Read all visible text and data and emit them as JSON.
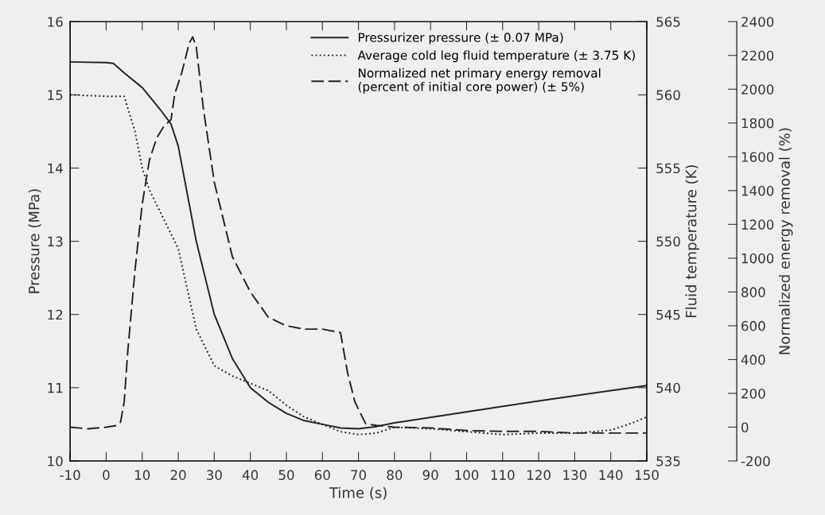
{
  "chart_data": {
    "type": "line",
    "xlabel": "Time (s)",
    "ylabel": "Pressure (MPa)",
    "y2label": "Fluid temperature (K)",
    "y3label": "Normalized energy removal (%)",
    "xlim": [
      -10,
      150
    ],
    "xticks": [
      -10,
      0,
      10,
      20,
      30,
      40,
      50,
      60,
      70,
      80,
      90,
      100,
      110,
      120,
      130,
      140,
      150
    ],
    "ylim": [
      10,
      16
    ],
    "yticks": [
      10,
      11,
      12,
      13,
      14,
      15,
      16
    ],
    "y2lim": [
      535,
      565
    ],
    "y2ticks": [
      535,
      540,
      545,
      550,
      555,
      560,
      565
    ],
    "y3lim": [
      -200,
      2400
    ],
    "y3ticks": [
      -200,
      0,
      200,
      400,
      600,
      800,
      1000,
      1200,
      1400,
      1600,
      1800,
      2000,
      2200,
      2400
    ],
    "legend": "top right",
    "grid": false,
    "series": [
      {
        "name": "Pressurizer pressure (± 0.07 MPa)",
        "color": "#222222",
        "line_style": "solid",
        "x": [
          -10,
          0,
          2,
          5,
          10,
          15,
          18,
          20,
          25,
          30,
          35,
          40,
          45,
          50,
          55,
          60,
          65,
          70,
          75,
          80,
          100,
          120,
          140,
          150
        ],
        "values": [
          15.45,
          15.44,
          15.43,
          15.3,
          15.1,
          14.8,
          14.6,
          14.3,
          13.0,
          12.0,
          11.4,
          11.0,
          10.8,
          10.65,
          10.55,
          10.5,
          10.45,
          10.44,
          10.47,
          10.52,
          10.67,
          10.82,
          10.96,
          11.03
        ]
      },
      {
        "name": "Average cold leg fluid temperature (± 3.75 K)",
        "color": "#222222",
        "line_style": "dotted",
        "axis": "y2",
        "x": [
          -10,
          0,
          5,
          8,
          10,
          12,
          15,
          20,
          25,
          30,
          35,
          40,
          45,
          50,
          55,
          60,
          65,
          70,
          75,
          80,
          90,
          100,
          110,
          120,
          130,
          140,
          145,
          150
        ],
        "values": [
          560,
          559.9,
          559.9,
          557.5,
          555,
          553.5,
          552,
          549.5,
          544,
          541.5,
          540.8,
          540.3,
          539.8,
          538.8,
          538,
          537.5,
          537,
          536.8,
          536.9,
          537.3,
          537.2,
          537,
          536.8,
          536.9,
          536.9,
          537.1,
          537.5,
          538
        ]
      },
      {
        "name": "Normalized net primary energy removal\n(percent of initial core power) (± 5%)",
        "color": "#222222",
        "line_style": "dashed",
        "axis": "y3",
        "x": [
          -10,
          -5,
          0,
          3,
          4,
          5,
          6,
          8,
          10,
          12,
          14,
          16,
          18,
          19,
          21,
          23,
          24,
          25,
          27,
          30,
          35,
          40,
          45,
          50,
          55,
          60,
          65,
          67,
          69,
          72,
          75,
          80,
          90,
          100,
          110,
          120,
          130,
          140,
          150
        ],
        "values": [
          0,
          -10,
          0,
          10,
          30,
          150,
          450,
          930,
          1320,
          1580,
          1710,
          1780,
          1820,
          1970,
          2100,
          2270,
          2310,
          2250,
          1880,
          1450,
          1010,
          800,
          650,
          600,
          580,
          580,
          560,
          320,
          150,
          20,
          10,
          0,
          -5,
          -20,
          -25,
          -25,
          -35,
          -35,
          -35
        ]
      }
    ]
  }
}
